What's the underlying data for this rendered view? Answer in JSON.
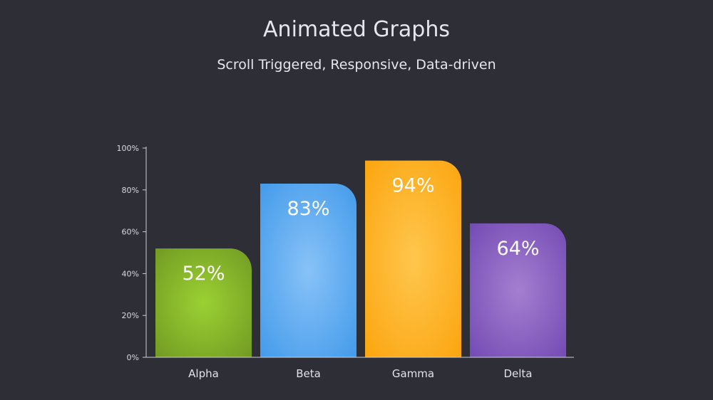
{
  "header": {
    "title": "Animated Graphs",
    "subtitle": "Scroll Triggered, Responsive, Data-driven"
  },
  "chart_data": {
    "type": "bar",
    "title": "",
    "xlabel": "",
    "ylabel": "",
    "categories": [
      "Alpha",
      "Beta",
      "Gamma",
      "Delta"
    ],
    "values": [
      52,
      83,
      94,
      64
    ],
    "value_labels": [
      "52%",
      "83%",
      "94%",
      "64%"
    ],
    "ylim": [
      0,
      100
    ],
    "yticks": [
      0,
      20,
      40,
      60,
      80,
      100
    ],
    "ytick_labels": [
      "0%",
      "20%",
      "40%",
      "60%",
      "80%",
      "100%"
    ],
    "grid": false,
    "legend": "none",
    "colors": [
      {
        "center": "#9bd133",
        "edge": "#6f9722"
      },
      {
        "center": "#88c2f7",
        "edge": "#3f98ea"
      },
      {
        "center": "#ffc64d",
        "edge": "#fba30c"
      },
      {
        "center": "#a47fd0",
        "edge": "#7147b2"
      }
    ],
    "background": "#2d2e36",
    "axis_color": "#cfcfd6"
  }
}
